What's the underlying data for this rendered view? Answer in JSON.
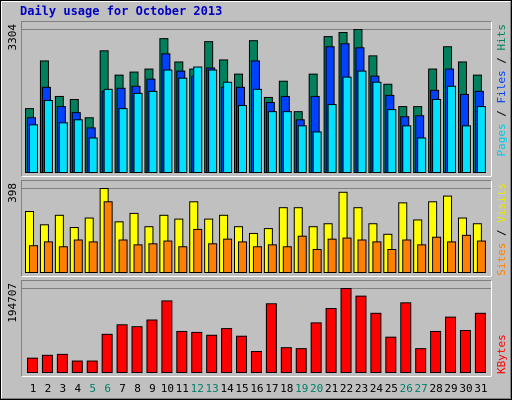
{
  "chart_data": {
    "type": "bar",
    "title": "Daily usage for October 2013",
    "categories": [
      "1",
      "2",
      "3",
      "4",
      "5",
      "6",
      "7",
      "8",
      "9",
      "10",
      "11",
      "12",
      "13",
      "14",
      "15",
      "16",
      "17",
      "18",
      "19",
      "20",
      "21",
      "22",
      "23",
      "24",
      "25",
      "26",
      "27",
      "28",
      "29",
      "30",
      "31"
    ],
    "category_colors": [
      "#000000",
      "#000000",
      "#000000",
      "#000000",
      "#00806a",
      "#00806a",
      "#000000",
      "#000000",
      "#000000",
      "#000000",
      "#000000",
      "#00806a",
      "#00806a",
      "#000000",
      "#000000",
      "#000000",
      "#000000",
      "#000000",
      "#00806a",
      "#00806a",
      "#000000",
      "#000000",
      "#000000",
      "#000000",
      "#000000",
      "#00806a",
      "#00806a",
      "#000000",
      "#000000",
      "#000000",
      "#000000"
    ],
    "legend_separator": "/",
    "panels": [
      {
        "ylim": [
          0,
          3304
        ],
        "yticks": [
          3304
        ],
        "series": [
          {
            "name": "Hits",
            "color": "#00805c",
            "text_color": "#00805c",
            "values": [
              1476,
              2578,
              1757,
              1687,
              1265,
              2812,
              2250,
              2320,
              2390,
              3093,
              2554,
              2390,
              3023,
              2601,
              2273,
              3046,
              1734,
              2109,
              1406,
              2273,
              3140,
              3234,
              3304,
              2695,
              2039,
              1523,
              1523,
              2390,
              2906,
              2554,
              2250
            ]
          },
          {
            "name": "Files",
            "color": "#0040ff",
            "text_color": "#0040ff",
            "values": [
              1265,
              1968,
              1523,
              1383,
              1031,
              1875,
              1945,
              1992,
              2156,
              2742,
              2343,
              2226,
              2414,
              1968,
              1968,
              2578,
              1617,
              1757,
              1218,
              1757,
              2906,
              2976,
              2882,
              2226,
              1781,
              1289,
              1312,
              1898,
              2390,
              1804,
              1875
            ]
          },
          {
            "name": "Pages",
            "color": "#00e0ff",
            "text_color": "#00c8e8",
            "values": [
              1101,
              1664,
              1148,
              1218,
              797,
              1921,
              1476,
              1828,
              1875,
              2367,
              2179,
              2437,
              2367,
              2085,
              1547,
              1921,
              1406,
              1406,
              1078,
              937,
              1570,
              2203,
              2343,
              2085,
              1453,
              1078,
              797,
              1687,
              1992,
              1078,
              1523
            ]
          }
        ]
      },
      {
        "ylim": [
          0,
          398
        ],
        "yticks": [
          398
        ],
        "series": [
          {
            "name": "Visits",
            "color": "#ffff00",
            "text_color": "#e8e800",
            "values": [
              289,
              226,
              271,
              213,
              258,
              398,
              240,
              280,
              217,
              271,
              253,
              335,
              253,
              271,
              217,
              185,
              208,
              307,
              307,
              217,
              231,
              380,
              307,
              231,
              181,
              330,
              249,
              335,
              362,
              258,
              231
            ]
          },
          {
            "name": "Sites",
            "color": "#ff8000",
            "text_color": "#ff8000",
            "values": [
              127,
              145,
              122,
              154,
              145,
              335,
              154,
              131,
              136,
              149,
              122,
              204,
              136,
              158,
              145,
              122,
              131,
              122,
              172,
              109,
              158,
              163,
              154,
              145,
              109,
              154,
              131,
              167,
              145,
              176,
              149
            ]
          }
        ]
      },
      {
        "ylim": [
          0,
          194707
        ],
        "yticks": [
          194707
        ],
        "series": [
          {
            "name": "KBytes",
            "color": "#ff0000",
            "text_color": "#ff0000",
            "values": [
              33189,
              39826,
              42039,
              26551,
              26551,
              88503,
              110629,
              106205,
              121692,
              165944,
              95141,
              92929,
              86291,
              101780,
              84079,
              48677,
              159307,
              57528,
              55315,
              115055,
              148243,
              194707,
              177005,
              137181,
              81866,
              161519,
              55315,
              95141,
              128330,
              97354,
              137181
            ]
          }
        ]
      }
    ]
  }
}
